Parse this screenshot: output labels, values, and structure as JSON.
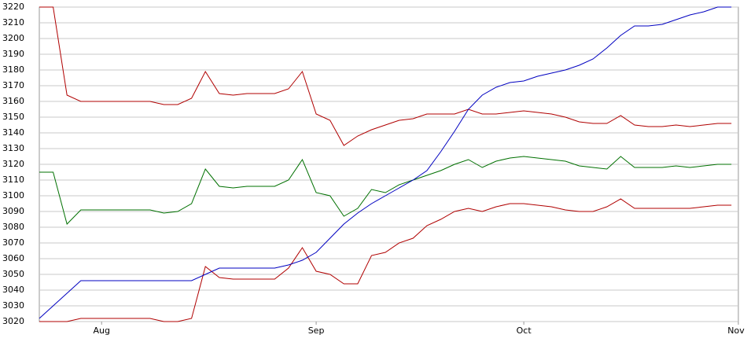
{
  "chart_data": {
    "type": "line",
    "x": [
      0,
      2,
      4,
      6,
      8,
      10,
      12,
      14,
      16,
      18,
      20,
      22,
      24,
      26,
      28,
      30,
      32,
      34,
      36,
      38,
      40,
      42,
      44,
      46,
      48,
      50,
      52,
      54,
      56,
      58,
      60,
      62,
      64,
      66,
      68,
      70,
      72,
      74,
      76,
      78,
      80,
      82,
      84,
      86,
      88,
      90,
      92,
      94,
      96,
      98,
      100
    ],
    "xlim": [
      0,
      101
    ],
    "xticks": [
      {
        "value": 9,
        "label": "Aug"
      },
      {
        "value": 40,
        "label": "Sep"
      },
      {
        "value": 70,
        "label": "Oct"
      },
      {
        "value": 101,
        "label": "Nov"
      }
    ],
    "ylim": [
      3020,
      3220
    ],
    "yticks": [
      3020,
      3030,
      3040,
      3050,
      3060,
      3070,
      3080,
      3090,
      3100,
      3110,
      3120,
      3130,
      3140,
      3150,
      3160,
      3170,
      3180,
      3190,
      3200,
      3210,
      3220
    ],
    "grid": true,
    "series": [
      {
        "color": "#b00000",
        "values": [
          3220,
          3220,
          3164,
          3160,
          3160,
          3160,
          3160,
          3160,
          3160,
          3158,
          3158,
          3162,
          3179,
          3165,
          3164,
          3165,
          3165,
          3165,
          3168,
          3179,
          3152,
          3148,
          3132,
          3138,
          3142,
          3145,
          3148,
          3149,
          3152,
          3152,
          3152,
          3155,
          3152,
          3152,
          3153,
          3154,
          3153,
          3152,
          3150,
          3147,
          3146,
          3146,
          3151,
          3145,
          3144,
          3144,
          3145,
          3144,
          3145,
          3146,
          3146
        ]
      },
      {
        "color": "#007000",
        "values": [
          3115,
          3115,
          3082,
          3091,
          3091,
          3091,
          3091,
          3091,
          3091,
          3089,
          3090,
          3095,
          3117,
          3106,
          3105,
          3106,
          3106,
          3106,
          3110,
          3123,
          3102,
          3100,
          3087,
          3092,
          3104,
          3102,
          3107,
          3110,
          3113,
          3116,
          3120,
          3123,
          3118,
          3122,
          3124,
          3125,
          3124,
          3123,
          3122,
          3119,
          3118,
          3117,
          3125,
          3118,
          3118,
          3118,
          3119,
          3118,
          3119,
          3120,
          3120
        ]
      },
      {
        "color": "#b00000",
        "values": [
          3020,
          3020,
          3020,
          3022,
          3022,
          3022,
          3022,
          3022,
          3022,
          3020,
          3020,
          3022,
          3055,
          3048,
          3047,
          3047,
          3047,
          3047,
          3054,
          3067,
          3052,
          3050,
          3044,
          3044,
          3062,
          3064,
          3070,
          3073,
          3081,
          3085,
          3090,
          3092,
          3090,
          3093,
          3095,
          3095,
          3094,
          3093,
          3091,
          3090,
          3090,
          3093,
          3098,
          3092,
          3092,
          3092,
          3092,
          3092,
          3093,
          3094,
          3094
        ]
      },
      {
        "color": "#0000c0",
        "values": [
          3022,
          3030,
          3038,
          3046,
          3046,
          3046,
          3046,
          3046,
          3046,
          3046,
          3046,
          3046,
          3050,
          3054,
          3054,
          3054,
          3054,
          3054,
          3056,
          3059,
          3064,
          3073,
          3082,
          3089,
          3095,
          3100,
          3105,
          3110,
          3116,
          3128,
          3141,
          3155,
          3164,
          3169,
          3172,
          3173,
          3176,
          3178,
          3180,
          3183,
          3187,
          3194,
          3202,
          3208,
          3208,
          3209,
          3212,
          3215,
          3217,
          3220,
          3220
        ]
      }
    ]
  }
}
